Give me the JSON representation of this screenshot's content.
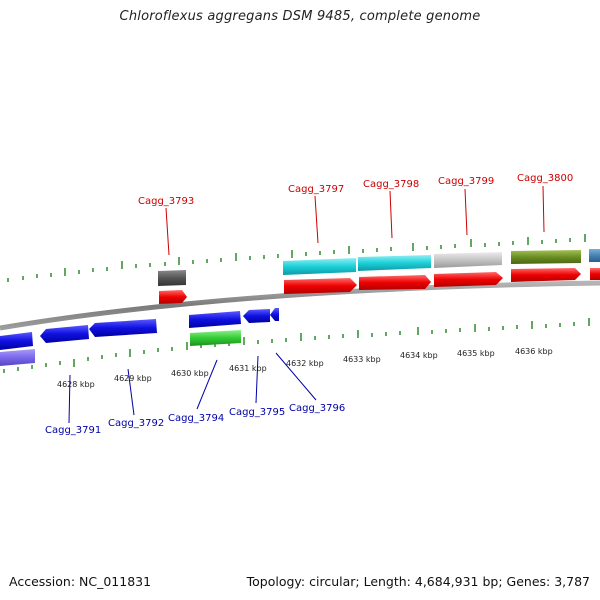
{
  "title": "Chloroflexus aggregans DSM 9485, complete genome",
  "accession": "Accession: NC_011831",
  "topology": "Topology: circular; Length: 4,684,931 bp; Genes: 3,787",
  "scale_labels": [
    "4628 kbp",
    "4629 kbp",
    "4630 kbp",
    "4631 kbp",
    "4632 kbp",
    "4633 kbp",
    "4634 kbp",
    "4635 kbp",
    "4636 kbp"
  ],
  "top_gene_labels": [
    "Cagg_3793",
    "Cagg_3797",
    "Cagg_3798",
    "Cagg_3799",
    "Cagg_3800"
  ],
  "bottom_gene_labels": [
    "Cagg_3791",
    "Cagg_3792",
    "Cagg_3794",
    "Cagg_3795",
    "Cagg_3796"
  ],
  "colors": {
    "backbone": "#808080",
    "tick": "#2e8b2e",
    "forward_cds": "#ff0000",
    "reverse_cds": "#0000ee",
    "label_top": "#cc0000",
    "label_bottom": "#0000aa",
    "cyan": "#1ccfd8",
    "grey": "#c0c0c0",
    "olive": "#6b8e23",
    "green": "#33cc33",
    "darkgrey": "#555555",
    "lavender": "#7b68ee",
    "steelblue": "#4682b4"
  }
}
